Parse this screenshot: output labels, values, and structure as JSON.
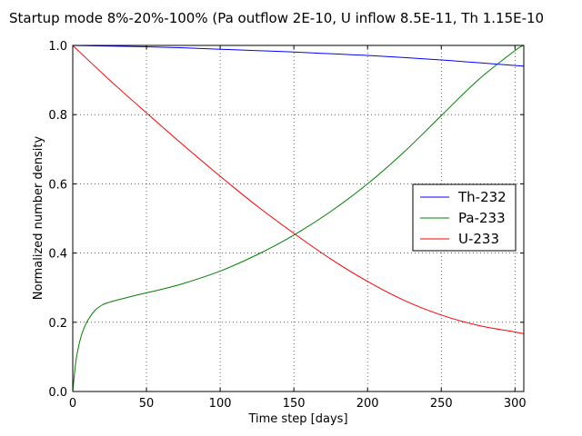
{
  "chart_data": {
    "type": "line",
    "title": "Startup mode 8%-20%-100% (Pa outflow 2E-10, U inflow 8.5E-11, Th 1.15E-10",
    "xlabel": "Time step [days]",
    "ylabel": "Normalized number density",
    "xlim": [
      0,
      306
    ],
    "ylim": [
      0.0,
      1.0
    ],
    "xticks": [
      0,
      50,
      100,
      150,
      200,
      250,
      300
    ],
    "yticks": [
      0.0,
      0.2,
      0.4,
      0.6,
      0.8,
      1.0
    ],
    "xtick_labels": [
      "0",
      "50",
      "100",
      "150",
      "200",
      "250",
      "300"
    ],
    "ytick_labels": [
      "0.0",
      "0.2",
      "0.4",
      "0.6",
      "0.8",
      "1.0"
    ],
    "grid": true,
    "legend_position": "right",
    "series": [
      {
        "name": "Th-232",
        "color": "#0000ff",
        "x": [
          0,
          25,
          50,
          75,
          100,
          125,
          150,
          175,
          200,
          225,
          250,
          275,
          300,
          306
        ],
        "y": [
          1.0,
          0.998,
          0.996,
          0.993,
          0.989,
          0.985,
          0.981,
          0.976,
          0.971,
          0.965,
          0.958,
          0.95,
          0.942,
          0.94
        ]
      },
      {
        "name": "Pa-233",
        "color": "#008000",
        "x": [
          0,
          1,
          2,
          3,
          5,
          7,
          10,
          15,
          20,
          25,
          30,
          40,
          50,
          60,
          75,
          100,
          125,
          150,
          175,
          200,
          225,
          250,
          275,
          300,
          306
        ],
        "y": [
          0.0,
          0.045,
          0.083,
          0.11,
          0.149,
          0.176,
          0.204,
          0.234,
          0.25,
          0.258,
          0.264,
          0.275,
          0.285,
          0.295,
          0.312,
          0.348,
          0.395,
          0.452,
          0.52,
          0.6,
          0.693,
          0.797,
          0.9,
          0.985,
          1.0
        ]
      },
      {
        "name": "U-233",
        "color": "#ff0000",
        "x": [
          0,
          25,
          50,
          75,
          100,
          125,
          150,
          175,
          200,
          225,
          250,
          275,
          300,
          306
        ],
        "y": [
          1.0,
          0.9,
          0.805,
          0.712,
          0.622,
          0.536,
          0.457,
          0.383,
          0.318,
          0.263,
          0.221,
          0.191,
          0.172,
          0.167
        ]
      }
    ]
  }
}
